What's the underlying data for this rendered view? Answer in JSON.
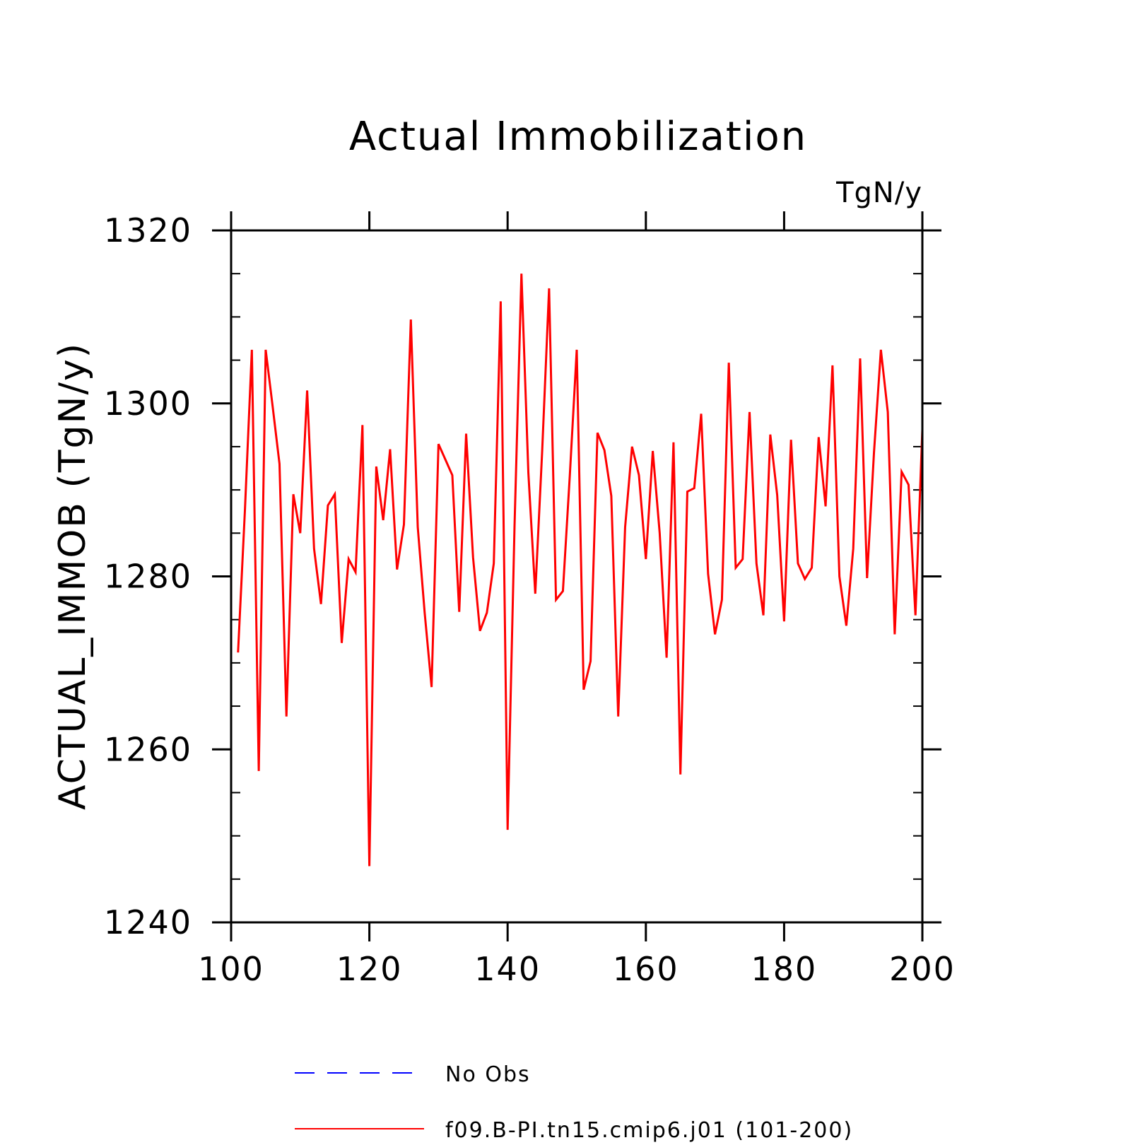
{
  "chart_data": {
    "type": "line",
    "title": "Actual Immobilization",
    "units_label": "TgN/y",
    "ylabel": "ACTUAL_IMMOB   (TgN/y)",
    "xlabel": "",
    "xlim": [
      100,
      200
    ],
    "ylim": [
      1240,
      1320
    ],
    "x_ticks": [
      100,
      120,
      140,
      160,
      180,
      200
    ],
    "x_tick_labels": [
      "100",
      "120",
      "140",
      "160",
      "180",
      "200"
    ],
    "y_ticks": [
      1240,
      1260,
      1280,
      1300,
      1320
    ],
    "y_tick_labels": [
      "1240",
      "1260",
      "1280",
      "1300",
      "1320"
    ],
    "y_minor_step": 5,
    "x_minor_step": 20,
    "grid": false,
    "legend_placement": "bottom",
    "legend": [
      {
        "label": "No Obs",
        "color": "#0000ff",
        "style": "dashed"
      },
      {
        "label": "f09.B-PI.tn15.cmip6.j01 (101-200)",
        "color": "#ff0000",
        "style": "solid"
      }
    ],
    "series": [
      {
        "name": "f09.B-PI.tn15.cmip6.j01 (101-200)",
        "color": "#ff0000",
        "x": [
          101,
          102,
          103,
          104,
          105,
          106,
          107,
          108,
          109,
          110,
          111,
          112,
          113,
          114,
          115,
          116,
          117,
          118,
          119,
          120,
          121,
          122,
          123,
          124,
          125,
          126,
          127,
          128,
          129,
          130,
          131,
          132,
          133,
          134,
          135,
          136,
          137,
          138,
          139,
          140,
          141,
          142,
          143,
          144,
          145,
          146,
          147,
          148,
          149,
          150,
          151,
          152,
          153,
          154,
          155,
          156,
          157,
          158,
          159,
          160,
          161,
          162,
          163,
          164,
          165,
          166,
          167,
          168,
          169,
          170,
          171,
          172,
          173,
          174,
          175,
          176,
          177,
          178,
          179,
          180,
          181,
          182,
          183,
          184,
          185,
          186,
          187,
          188,
          189,
          190,
          191,
          192,
          193,
          194,
          195,
          196,
          197,
          198,
          199,
          200
        ],
        "values": [
          1271.2,
          1287.7,
          1306.2,
          1257.5,
          1306.2,
          1299.7,
          1293.0,
          1263.8,
          1289.5,
          1285.0,
          1301.5,
          1283.2,
          1276.8,
          1288.2,
          1289.5,
          1272.3,
          1282.0,
          1280.5,
          1297.5,
          1246.5,
          1292.7,
          1286.5,
          1294.7,
          1280.8,
          1286.0,
          1309.7,
          1285.7,
          1275.8,
          1267.2,
          1295.3,
          1293.5,
          1291.7,
          1275.9,
          1296.5,
          1282.2,
          1273.7,
          1275.8,
          1281.5,
          1311.8,
          1250.7,
          1285.8,
          1315.0,
          1292.0,
          1278.0,
          1294.5,
          1313.3,
          1277.3,
          1278.3,
          1291.7,
          1306.2,
          1266.9,
          1270.2,
          1296.6,
          1294.6,
          1289.3,
          1263.8,
          1285.7,
          1295.0,
          1291.7,
          1282.0,
          1294.5,
          1285.0,
          1270.6,
          1295.5,
          1257.1,
          1289.8,
          1290.2,
          1298.8,
          1280.3,
          1273.3,
          1277.3,
          1304.7,
          1281.0,
          1282.0,
          1299.0,
          1281.5,
          1275.5,
          1296.4,
          1289.4,
          1274.8,
          1295.8,
          1281.5,
          1279.7,
          1281.0,
          1296.1,
          1288.1,
          1304.4,
          1280.0,
          1274.3,
          1283.2,
          1305.2,
          1279.8,
          1294.3,
          1306.2,
          1299.0,
          1273.3,
          1292.1,
          1290.6,
          1275.5,
          1297.0
        ]
      }
    ]
  }
}
